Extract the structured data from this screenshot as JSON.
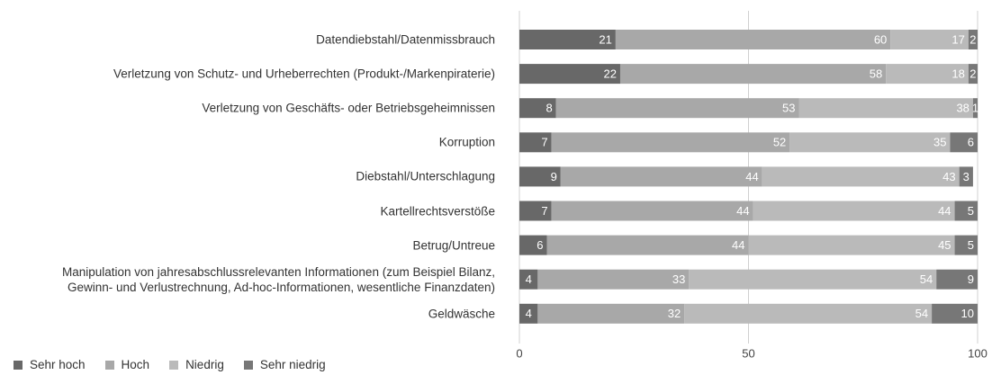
{
  "chart_data": {
    "type": "stacked_barh",
    "categories": [
      "Datendiebstahl/Datenmissbrauch",
      "Verletzung von Schutz- und Urheberrechten (Produkt-/Markenpiraterie)",
      "Verletzung von Geschäfts- oder Betriebsgeheimnissen",
      "Korruption",
      "Diebstahl/Unterschlagung",
      "Kartellrechtsverstöße",
      "Betrug/Untreue",
      "Manipulation von jahresabschlussrelevanten Informationen (zum Beispiel Bilanz,\nGewinn- und Verlustrechnung, Ad-hoc-Informationen, wesentliche Finanzdaten)",
      "Geldwäsche"
    ],
    "series": [
      {
        "name": "Sehr hoch",
        "color": "#686868",
        "values": [
          21,
          22,
          8,
          7,
          9,
          7,
          6,
          4,
          4
        ]
      },
      {
        "name": "Hoch",
        "color": "#a8a8a8",
        "values": [
          60,
          58,
          53,
          52,
          44,
          44,
          44,
          33,
          32
        ]
      },
      {
        "name": "Niedrig",
        "color": "#bababa",
        "values": [
          17,
          18,
          38,
          35,
          43,
          44,
          45,
          54,
          54
        ]
      },
      {
        "name": "Sehr niedrig",
        "color": "#777777",
        "values": [
          2,
          2,
          1,
          6,
          3,
          5,
          5,
          9,
          10
        ]
      }
    ],
    "xlim": [
      0,
      100
    ],
    "xticks": [
      0,
      50,
      100
    ],
    "grid": true
  }
}
